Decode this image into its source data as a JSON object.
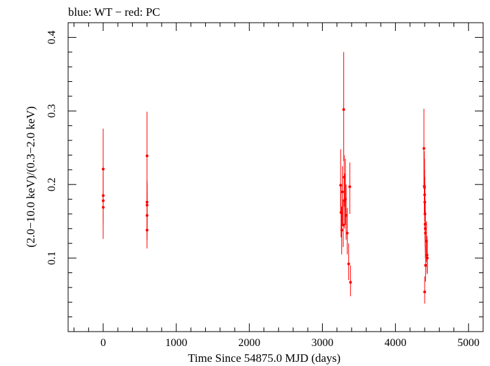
{
  "chart_data": {
    "type": "scatter",
    "title": "blue: WT − red: PC",
    "xlabel": "Time Since 54875.0 MJD (days)",
    "ylabel": "(2.0−10.0 keV)/(0.3−2.0 keV)",
    "xlim": [
      -480,
      5200
    ],
    "ylim": [
      0.0,
      0.42
    ],
    "xticks": [
      0,
      1000,
      2000,
      3000,
      4000,
      5000
    ],
    "yticks": [
      0.1,
      0.2,
      0.3,
      0.4
    ],
    "grid": false,
    "series": [
      {
        "name": "PC",
        "color": "#ff0000",
        "points": [
          {
            "x": 0,
            "y": 0.221,
            "ylo": 0.175,
            "yhi": 0.276
          },
          {
            "x": 0,
            "y": 0.185,
            "ylo": 0.15,
            "yhi": 0.225
          },
          {
            "x": 0,
            "y": 0.178,
            "ylo": 0.145,
            "yhi": 0.215
          },
          {
            "x": 0,
            "y": 0.169,
            "ylo": 0.126,
            "yhi": 0.212
          },
          {
            "x": 600,
            "y": 0.239,
            "ylo": 0.178,
            "yhi": 0.299
          },
          {
            "x": 600,
            "y": 0.176,
            "ylo": 0.135,
            "yhi": 0.205
          },
          {
            "x": 600,
            "y": 0.172,
            "ylo": 0.14,
            "yhi": 0.2
          },
          {
            "x": 600,
            "y": 0.158,
            "ylo": 0.125,
            "yhi": 0.19
          },
          {
            "x": 600,
            "y": 0.138,
            "ylo": 0.113,
            "yhi": 0.165
          },
          {
            "x": 3250,
            "y": 0.199,
            "ylo": 0.16,
            "yhi": 0.248
          },
          {
            "x": 3255,
            "y": 0.162,
            "ylo": 0.128,
            "yhi": 0.2
          },
          {
            "x": 3265,
            "y": 0.138,
            "ylo": 0.105,
            "yhi": 0.17
          },
          {
            "x": 3275,
            "y": 0.19,
            "ylo": 0.145,
            "yhi": 0.225
          },
          {
            "x": 3285,
            "y": 0.145,
            "ylo": 0.115,
            "yhi": 0.18
          },
          {
            "x": 3292,
            "y": 0.302,
            "ylo": 0.232,
            "yhi": 0.38
          },
          {
            "x": 3298,
            "y": 0.21,
            "ylo": 0.17,
            "yhi": 0.24
          },
          {
            "x": 3305,
            "y": 0.178,
            "ylo": 0.14,
            "yhi": 0.215
          },
          {
            "x": 3315,
            "y": 0.18,
            "ylo": 0.145,
            "yhi": 0.235
          },
          {
            "x": 3325,
            "y": 0.158,
            "ylo": 0.125,
            "yhi": 0.2
          },
          {
            "x": 3340,
            "y": 0.134,
            "ylo": 0.105,
            "yhi": 0.168
          },
          {
            "x": 3360,
            "y": 0.092,
            "ylo": 0.07,
            "yhi": 0.12
          },
          {
            "x": 3375,
            "y": 0.197,
            "ylo": 0.16,
            "yhi": 0.23
          },
          {
            "x": 3385,
            "y": 0.067,
            "ylo": 0.048,
            "yhi": 0.09
          },
          {
            "x": 4390,
            "y": 0.249,
            "ylo": 0.2,
            "yhi": 0.303
          },
          {
            "x": 4395,
            "y": 0.198,
            "ylo": 0.16,
            "yhi": 0.245
          },
          {
            "x": 4398,
            "y": 0.196,
            "ylo": 0.16,
            "yhi": 0.235
          },
          {
            "x": 4400,
            "y": 0.186,
            "ylo": 0.15,
            "yhi": 0.22
          },
          {
            "x": 4402,
            "y": 0.176,
            "ylo": 0.14,
            "yhi": 0.21
          },
          {
            "x": 4404,
            "y": 0.16,
            "ylo": 0.125,
            "yhi": 0.2
          },
          {
            "x": 4406,
            "y": 0.146,
            "ylo": 0.115,
            "yhi": 0.18
          },
          {
            "x": 4408,
            "y": 0.14,
            "ylo": 0.11,
            "yhi": 0.175
          },
          {
            "x": 4410,
            "y": 0.134,
            "ylo": 0.1,
            "yhi": 0.165
          },
          {
            "x": 4412,
            "y": 0.09,
            "ylo": 0.068,
            "yhi": 0.115
          },
          {
            "x": 4400,
            "y": 0.054,
            "ylo": 0.038,
            "yhi": 0.075
          },
          {
            "x": 4425,
            "y": 0.123,
            "ylo": 0.095,
            "yhi": 0.15
          },
          {
            "x": 4432,
            "y": 0.104,
            "ylo": 0.08,
            "yhi": 0.13
          },
          {
            "x": 4436,
            "y": 0.1,
            "ylo": 0.078,
            "yhi": 0.125
          }
        ]
      }
    ]
  }
}
